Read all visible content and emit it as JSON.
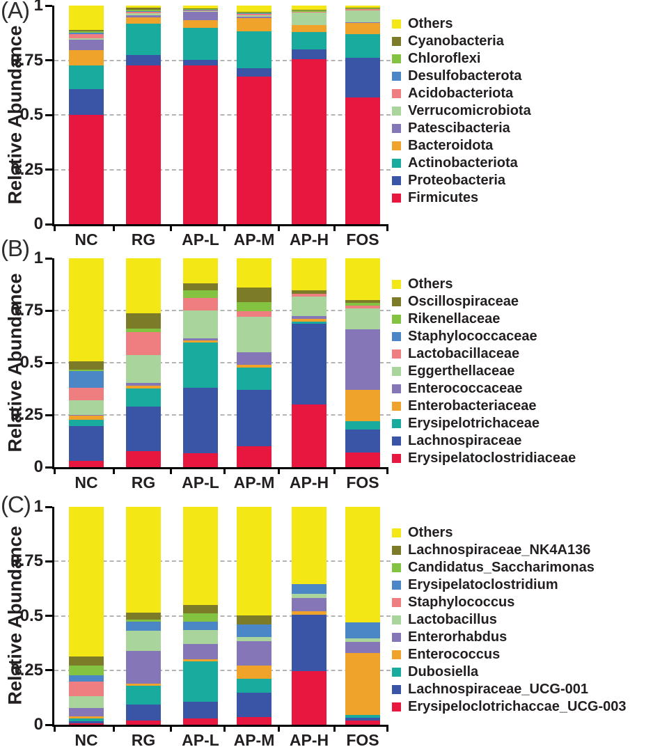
{
  "figure_title": "",
  "groups": [
    "NC",
    "RG",
    "AP-L",
    "AP-M",
    "AP-H",
    "FOS"
  ],
  "palette": {
    "yellow": "#f3e816",
    "olive": "#7c7b28",
    "green": "#84c341",
    "blue": "#4b87c7",
    "salmon": "#ee7e80",
    "light_green": "#a9d49b",
    "purple": "#8476b7",
    "orange": "#f0a32a",
    "teal": "#19ac9e",
    "dark_blue": "#3a55a5",
    "red": "#e8173f"
  },
  "chart_data": [
    {
      "type": "bar",
      "stacked": true,
      "panel_label": "(A)",
      "ylabel": "Relative Abundance",
      "ylim": [
        0,
        1
      ],
      "grid": true,
      "gridlines": [
        0.25,
        0.5,
        0.75
      ],
      "legend_position": "right",
      "yticks": [
        {
          "label": "0",
          "value": 0
        },
        {
          "label": "0.25",
          "value": 0.25
        },
        {
          "label": "0.5",
          "value": 0.5
        },
        {
          "label": "0.75",
          "value": 0.75
        },
        {
          "label": "1",
          "value": 1
        }
      ],
      "categories": [
        "NC",
        "RG",
        "AP-L",
        "AP-M",
        "AP-H",
        "FOS"
      ],
      "series": [
        {
          "name": "Firmicutes",
          "color": "#e8173f",
          "values": [
            0.5,
            0.725,
            0.725,
            0.675,
            0.755,
            0.58
          ]
        },
        {
          "name": "Proteobacteria",
          "color": "#3a55a5",
          "values": [
            0.117,
            0.048,
            0.027,
            0.037,
            0.045,
            0.18
          ]
        },
        {
          "name": "Actinobacteriota",
          "color": "#19ac9e",
          "values": [
            0.108,
            0.143,
            0.146,
            0.171,
            0.078,
            0.11
          ]
        },
        {
          "name": "Bacteroidota",
          "color": "#f0a32a",
          "values": [
            0.072,
            0.03,
            0.034,
            0.06,
            0.032,
            0.051
          ]
        },
        {
          "name": "Patescibacteria",
          "color": "#8476b7",
          "values": [
            0.046,
            0.01,
            0.04,
            0.006,
            0.002,
            0.002
          ]
        },
        {
          "name": "Verrucomicrobiota",
          "color": "#a9d49b",
          "values": [
            0.008,
            0.008,
            0.004,
            0.006,
            0.055,
            0.054
          ]
        },
        {
          "name": "Acidobacteriota",
          "color": "#ee7e80",
          "values": [
            0.017,
            0.006,
            0.003,
            0.007,
            0.003,
            0.006
          ]
        },
        {
          "name": "Desulfobacterota",
          "color": "#4b87c7",
          "values": [
            0.008,
            0.004,
            0.003,
            0.003,
            0.002,
            0.002
          ]
        },
        {
          "name": "Chloroflexi",
          "color": "#84c341",
          "values": [
            0.007,
            0.008,
            0.003,
            0.002,
            0.006,
            0.002
          ]
        },
        {
          "name": "Cyanobacteria",
          "color": "#7c7b28",
          "values": [
            0.005,
            0.008,
            0.003,
            0.005,
            0.004,
            0.002
          ]
        },
        {
          "name": "Others",
          "color": "#f3e816",
          "values": [
            0.112,
            0.01,
            0.012,
            0.028,
            0.018,
            0.011
          ]
        }
      ]
    },
    {
      "type": "bar",
      "stacked": true,
      "panel_label": "(B)",
      "ylabel": "Relative Abundance",
      "ylim": [
        0,
        1
      ],
      "grid": true,
      "gridlines": [
        0.25,
        0.5,
        0.75
      ],
      "legend_position": "right",
      "yticks": [
        {
          "label": "0",
          "value": 0
        },
        {
          "label": "0.25",
          "value": 0.25
        },
        {
          "label": "0.5",
          "value": 0.5
        },
        {
          "label": "0.75",
          "value": 0.75
        },
        {
          "label": "1",
          "value": 1
        }
      ],
      "categories": [
        "NC",
        "RG",
        "AP-L",
        "AP-M",
        "AP-H",
        "FOS"
      ],
      "series": [
        {
          "name": "Erysipelatoclostridiaceae",
          "color": "#e8173f",
          "values": [
            0.03,
            0.075,
            0.068,
            0.1,
            0.3,
            0.07
          ]
        },
        {
          "name": "Lachnospiraceae",
          "color": "#3a55a5",
          "values": [
            0.165,
            0.215,
            0.312,
            0.27,
            0.385,
            0.11
          ]
        },
        {
          "name": "Erysipelotrichaceae",
          "color": "#19ac9e",
          "values": [
            0.03,
            0.085,
            0.215,
            0.105,
            0.013,
            0.04
          ]
        },
        {
          "name": "Enterobacteriaceae",
          "color": "#f0a32a",
          "values": [
            0.02,
            0.015,
            0.01,
            0.015,
            0.012,
            0.15
          ]
        },
        {
          "name": "Enterococcaceae",
          "color": "#8476b7",
          "values": [
            0.005,
            0.012,
            0.012,
            0.06,
            0.012,
            0.29
          ]
        },
        {
          "name": "Eggerthellaceae",
          "color": "#a9d49b",
          "values": [
            0.07,
            0.135,
            0.133,
            0.17,
            0.095,
            0.1
          ]
        },
        {
          "name": "Lactobacillaceae",
          "color": "#ee7e80",
          "values": [
            0.06,
            0.11,
            0.06,
            0.025,
            0.013,
            0.015
          ]
        },
        {
          "name": "Staphylococcaceae",
          "color": "#4b87c7",
          "values": [
            0.08,
            0,
            0,
            0,
            0,
            0
          ]
        },
        {
          "name": "Rikenellaceae",
          "color": "#84c341",
          "values": [
            0.005,
            0.015,
            0.035,
            0.045,
            0,
            0.013
          ]
        },
        {
          "name": "Oscillospiraceae",
          "color": "#7c7b28",
          "values": [
            0.04,
            0.073,
            0.035,
            0.07,
            0.015,
            0.012
          ]
        },
        {
          "name": "Others",
          "color": "#f3e816",
          "values": [
            0.495,
            0.265,
            0.12,
            0.14,
            0.155,
            0.2
          ]
        }
      ]
    },
    {
      "type": "bar",
      "stacked": true,
      "panel_label": "(C)",
      "ylabel": "Relative Abundance",
      "ylim": [
        0,
        1
      ],
      "grid": true,
      "gridlines": [
        0.25,
        0.5,
        0.75
      ],
      "legend_position": "right",
      "yticks": [
        {
          "label": "0",
          "value": 0
        },
        {
          "label": "0.25",
          "value": 0.25
        },
        {
          "label": "0.5",
          "value": 0.5
        },
        {
          "label": "0.75",
          "value": 0.75
        },
        {
          "label": "1",
          "value": 1
        }
      ],
      "categories": [
        "NC",
        "RG",
        "AP-L",
        "AP-M",
        "AP-H",
        "FOS"
      ],
      "series": [
        {
          "name": "Erysipeloclotrichaccae_UCG-003",
          "color": "#e8173f",
          "values": [
            0.005,
            0.019,
            0.03,
            0.035,
            0.245,
            0.019
          ]
        },
        {
          "name": "Lachnospiraceae_UCG-001",
          "color": "#3a55a5",
          "values": [
            0.012,
            0.075,
            0.075,
            0.113,
            0.26,
            0.013
          ]
        },
        {
          "name": "Dubosiella",
          "color": "#19ac9e",
          "values": [
            0.012,
            0.086,
            0.185,
            0.062,
            0,
            0.014
          ]
        },
        {
          "name": "Enterococcus",
          "color": "#f0a32a",
          "values": [
            0.008,
            0.01,
            0.01,
            0.06,
            0.015,
            0.282
          ]
        },
        {
          "name": "Enterorhabdus",
          "color": "#8476b7",
          "values": [
            0.04,
            0.15,
            0.07,
            0.112,
            0.06,
            0.052
          ]
        },
        {
          "name": "Lactobacillus",
          "color": "#a9d49b",
          "values": [
            0.055,
            0.09,
            0.065,
            0.02,
            0.02,
            0.017
          ]
        },
        {
          "name": "Staphylococcus",
          "color": "#ee7e80",
          "values": [
            0.065,
            0,
            0,
            0,
            0,
            0
          ]
        },
        {
          "name": "Erysipelatoclostridium",
          "color": "#4b87c7",
          "values": [
            0.03,
            0.042,
            0.037,
            0.058,
            0.045,
            0.073
          ]
        },
        {
          "name": "Candidatus_Saccharimonas",
          "color": "#84c341",
          "values": [
            0.045,
            0.011,
            0.038,
            0,
            0,
            0
          ]
        },
        {
          "name": "Lachnospiraceae_NK4A136",
          "color": "#7c7b28",
          "values": [
            0.04,
            0.032,
            0.04,
            0.04,
            0,
            0
          ]
        },
        {
          "name": "Others",
          "color": "#f3e816",
          "values": [
            0.688,
            0.485,
            0.45,
            0.5,
            0.355,
            0.53
          ]
        }
      ]
    }
  ]
}
